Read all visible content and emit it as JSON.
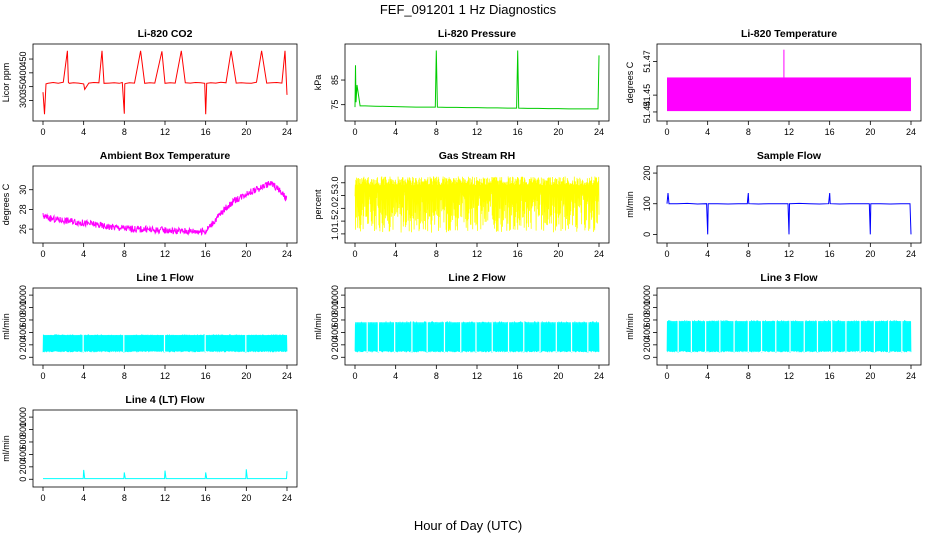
{
  "title": "FEF_091201  1 Hz Diagnostics",
  "xlabel_global": "Hour of Day (UTC)",
  "chart_data": [
    {
      "type": "line",
      "title": "Li-820 CO2",
      "ylabel": "Licor ppm",
      "color": "#ff0000",
      "xlim": [
        0,
        24
      ],
      "ylim": [
        240,
        490
      ],
      "yticks": [
        300,
        350,
        400,
        450
      ],
      "xticks": [
        0,
        4,
        8,
        12,
        16,
        20,
        24
      ],
      "series": [
        {
          "x": [
            0,
            0.15,
            0.3,
            0.5,
            1,
            1.5,
            2,
            2.4,
            2.5,
            2.6,
            3,
            3.5,
            4,
            4.1,
            4.5,
            5,
            5.5,
            5.8,
            6,
            6.5,
            7,
            7.5,
            7.8,
            8,
            8.05,
            8.2,
            8.5,
            9,
            9.6,
            10,
            10.5,
            11,
            11.7,
            12,
            12.5,
            13,
            13.6,
            14,
            14.5,
            15,
            15.5,
            15.9,
            16,
            16.1,
            16.5,
            17,
            17.5,
            18,
            18.5,
            19,
            19.5,
            20,
            20.5,
            21,
            21.5,
            22,
            22.5,
            23,
            23.5,
            23.8,
            24
          ],
          "y": [
            330,
            250,
            360,
            362,
            365,
            362,
            366,
            480,
            365,
            362,
            364,
            363,
            360,
            340,
            363,
            365,
            364,
            480,
            362,
            363,
            364,
            362,
            365,
            252,
            360,
            362,
            364,
            363,
            480,
            362,
            364,
            363,
            478,
            362,
            364,
            363,
            480,
            364,
            363,
            365,
            364,
            362,
            250,
            362,
            364,
            363,
            366,
            364,
            480,
            363,
            364,
            363,
            362,
            366,
            480,
            363,
            364,
            365,
            363,
            480,
            320
          ]
        }
      ]
    },
    {
      "type": "line",
      "title": "Li-820 Pressure",
      "ylabel": "kPa",
      "color": "#00cc00",
      "xlim": [
        0,
        24
      ],
      "ylim": [
        70,
        98
      ],
      "yticks": [
        75,
        85
      ],
      "xticks": [
        0,
        4,
        8,
        12,
        16,
        20,
        24
      ],
      "series": [
        {
          "x": [
            0,
            0.05,
            0.1,
            0.2,
            0.5,
            1,
            2,
            3,
            4,
            5,
            6,
            7,
            7.9,
            8,
            8.1,
            9,
            10,
            11,
            12,
            13,
            14,
            15,
            15.9,
            16,
            16.1,
            17,
            18,
            19,
            20,
            21,
            22,
            23,
            23.9,
            24
          ],
          "y": [
            74,
            91,
            76,
            83,
            74.5,
            74.5,
            74.4,
            74.3,
            74.2,
            74.1,
            74,
            74,
            74,
            97,
            74,
            73.9,
            73.9,
            73.8,
            73.8,
            73.7,
            73.7,
            73.6,
            73.6,
            97,
            73.6,
            73.5,
            73.5,
            73.4,
            73.4,
            73.3,
            73.3,
            73.3,
            73.3,
            95
          ]
        }
      ]
    },
    {
      "type": "area",
      "title": "Li-820 Temperature",
      "ylabel": "degrees C",
      "color": "#ff00ff",
      "xlim": [
        0,
        24
      ],
      "ylim": [
        51.437,
        51.478
      ],
      "yticks": [
        51.44,
        51.45,
        51.47
      ],
      "ytick_labels": [
        "51.44",
        "51.45",
        "51.47"
      ],
      "xticks": [
        0,
        4,
        8,
        12,
        16,
        20,
        24
      ],
      "band": {
        "low": 51.4405,
        "high": 51.4605
      },
      "spike": {
        "x": 11.5,
        "y": 51.477
      }
    },
    {
      "type": "line",
      "title": "Ambient Box Temperature",
      "ylabel": "degrees C",
      "color": "#ff00ff",
      "xlim": [
        0,
        24
      ],
      "ylim": [
        25,
        32
      ],
      "yticks": [
        26,
        28,
        30
      ],
      "xticks": [
        0,
        4,
        8,
        12,
        16,
        20,
        24
      ],
      "noise": 0.7,
      "series": [
        {
          "x": [
            0,
            1,
            2,
            3,
            4,
            5,
            6,
            7,
            8,
            9,
            10,
            11,
            12,
            13,
            14,
            15,
            16,
            17,
            18,
            19,
            20,
            21,
            22,
            22.5,
            23,
            23.5,
            24
          ],
          "y": [
            27.3,
            27.0,
            26.9,
            26.8,
            26.6,
            26.5,
            26.3,
            26.2,
            26.1,
            26.0,
            26.0,
            25.9,
            25.9,
            25.8,
            25.8,
            25.8,
            25.8,
            27.0,
            28.2,
            29.0,
            29.6,
            30.0,
            30.5,
            30.6,
            30.2,
            29.6,
            29.0
          ]
        }
      ]
    },
    {
      "type": "line",
      "title": "Gas Stream RH",
      "ylabel": "percent",
      "color": "#ffff00",
      "xlim": [
        0,
        24
      ],
      "ylim": [
        0.8,
        3.5
      ],
      "yticks": [
        1.0,
        1.5,
        2.0,
        2.5,
        3.0
      ],
      "ytick_labels": [
        "1.0",
        "1.5",
        "2.0",
        "2.5",
        "3.0"
      ],
      "xticks": [
        0,
        4,
        8,
        12,
        16,
        20,
        24
      ],
      "band": {
        "low": 1.05,
        "high": 3.25
      }
    },
    {
      "type": "line",
      "title": "Sample Flow",
      "ylabel": "ml/min",
      "color": "#0000ff",
      "xlim": [
        0,
        24
      ],
      "ylim": [
        -15,
        210
      ],
      "yticks": [
        0,
        100,
        200
      ],
      "xticks": [
        0,
        4,
        8,
        12,
        16,
        20,
        24
      ],
      "series": [
        {
          "x": [
            0,
            0.1,
            0.2,
            1,
            2,
            3,
            3.9,
            4,
            4.05,
            5,
            6,
            7,
            7.9,
            8,
            8.05,
            9,
            10,
            11,
            11.9,
            12,
            12.05,
            13,
            14,
            15,
            15.9,
            16,
            16.05,
            17,
            18,
            19,
            19.9,
            20,
            20.05,
            21,
            22,
            23,
            23.9,
            24
          ],
          "y": [
            100,
            135,
            100,
            100,
            101,
            99,
            100,
            0,
            100,
            100,
            99,
            100,
            100,
            135,
            100,
            99,
            100,
            100,
            100,
            0,
            100,
            101,
            100,
            99,
            100,
            135,
            100,
            99,
            100,
            100,
            100,
            0,
            100,
            100,
            99,
            100,
            100,
            0
          ]
        }
      ]
    },
    {
      "type": "area",
      "title": "Line 1 Flow",
      "ylabel": "ml/min",
      "color": "#00ffff",
      "xlim": [
        0,
        24
      ],
      "ylim": [
        -60,
        1050
      ],
      "yticks": [
        0,
        200,
        400,
        600,
        800,
        1000
      ],
      "xticks": [
        0,
        4,
        8,
        12,
        16,
        20,
        24
      ],
      "band": {
        "low": 80,
        "high": 370
      },
      "gaps": [
        3.95,
        7.95,
        11.95,
        15.95,
        19.95
      ]
    },
    {
      "type": "area",
      "title": "Line 2 Flow",
      "ylabel": "ml/min",
      "color": "#00ffff",
      "xlim": [
        0,
        24
      ],
      "ylim": [
        -60,
        1050
      ],
      "yticks": [
        0,
        200,
        400,
        600,
        800,
        1000
      ],
      "xticks": [
        0,
        4,
        8,
        12,
        16,
        20,
        24
      ],
      "band": {
        "low": 80,
        "high": 580
      },
      "gaps": [
        1.2,
        2.3,
        3.9,
        5.6,
        7.1,
        8.8,
        10.4,
        11.9,
        13.5,
        15.1,
        16.6,
        18.2,
        19.8,
        21.3,
        22.9
      ]
    },
    {
      "type": "area",
      "title": "Line 3 Flow",
      "ylabel": "ml/min",
      "color": "#00ffff",
      "xlim": [
        0,
        24
      ],
      "ylim": [
        -60,
        1050
      ],
      "yticks": [
        0,
        200,
        400,
        600,
        800,
        1000
      ],
      "xticks": [
        0,
        4,
        8,
        12,
        16,
        20,
        24
      ],
      "band": {
        "low": 80,
        "high": 600
      },
      "gaps": [
        1.1,
        2.4,
        3.8,
        5.2,
        6.6,
        8.0,
        9.3,
        10.7,
        12.1,
        13.5,
        14.8,
        16.2,
        17.6,
        19.0,
        20.4,
        21.8,
        23.1
      ]
    },
    {
      "type": "line",
      "title": "Line 4 (LT) Flow",
      "ylabel": "ml/min",
      "color": "#00ffff",
      "xlim": [
        0,
        24
      ],
      "ylim": [
        -60,
        1050
      ],
      "yticks": [
        0,
        200,
        400,
        600,
        800,
        1000
      ],
      "xticks": [
        0,
        4,
        8,
        12,
        16,
        20,
        24
      ],
      "series": [
        {
          "x": [
            0,
            3.95,
            4.0,
            4.1,
            7.95,
            8.0,
            8.1,
            11.95,
            12.0,
            12.1,
            15.95,
            16.0,
            16.1,
            19.95,
            20.0,
            20.1,
            23.95,
            24.0
          ],
          "y": [
            10,
            10,
            150,
            10,
            10,
            110,
            10,
            10,
            140,
            10,
            10,
            110,
            10,
            10,
            160,
            10,
            10,
            130
          ]
        }
      ]
    }
  ]
}
